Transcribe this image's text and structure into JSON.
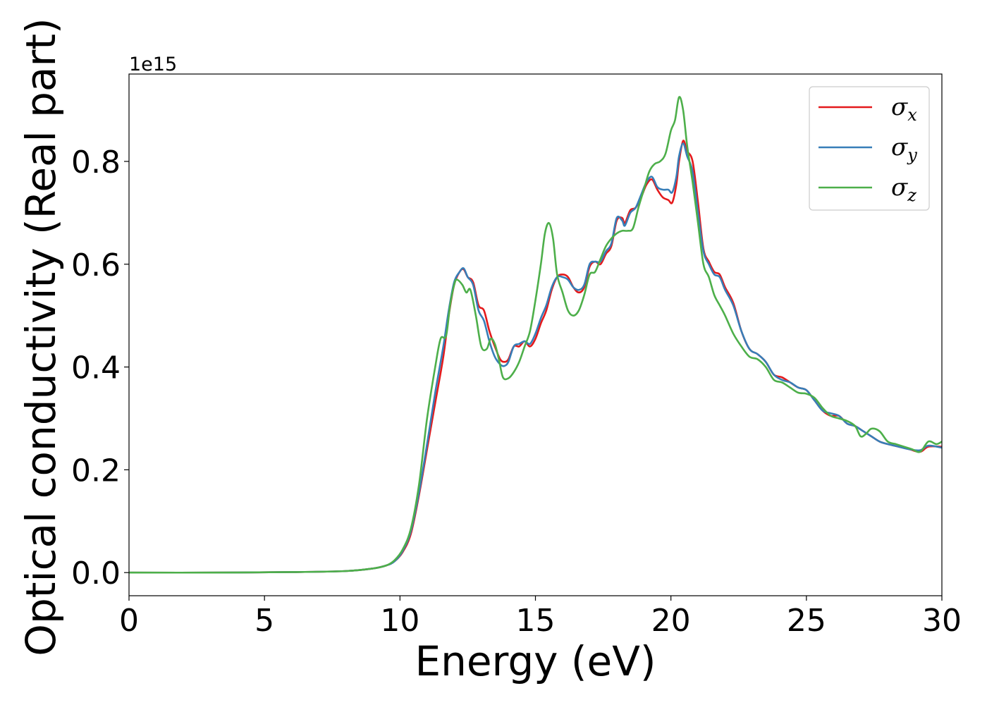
{
  "chart_data": {
    "type": "line",
    "title": "",
    "xlabel": "Energy (eV)",
    "ylabel": "Optical conductivity (Real part)",
    "y_offset_text": "1e15",
    "xlim": [
      0,
      30
    ],
    "ylim": [
      -0.045,
      0.97
    ],
    "x_ticks": [
      0,
      5,
      10,
      15,
      20,
      25,
      30
    ],
    "y_ticks": [
      0.0,
      0.2,
      0.4,
      0.6,
      0.8
    ],
    "x_tick_labels": [
      "0",
      "5",
      "10",
      "15",
      "20",
      "25",
      "30"
    ],
    "y_tick_labels": [
      "0.0",
      "0.2",
      "0.4",
      "0.6",
      "0.8"
    ],
    "grid": false,
    "legend_position": "top-right",
    "series": [
      {
        "name": "σx",
        "legend_base": "σ",
        "legend_sub": "x",
        "color": "#e41a1c",
        "points": [
          [
            0,
            0
          ],
          [
            3,
            0
          ],
          [
            6,
            0.001
          ],
          [
            8,
            0.003
          ],
          [
            9,
            0.008
          ],
          [
            9.5,
            0.014
          ],
          [
            9.8,
            0.022
          ],
          [
            10.1,
            0.04
          ],
          [
            10.4,
            0.075
          ],
          [
            10.7,
            0.15
          ],
          [
            11.0,
            0.24
          ],
          [
            11.3,
            0.33
          ],
          [
            11.6,
            0.42
          ],
          [
            11.8,
            0.5
          ],
          [
            12.0,
            0.56
          ],
          [
            12.2,
            0.585
          ],
          [
            12.35,
            0.59
          ],
          [
            12.5,
            0.575
          ],
          [
            12.7,
            0.565
          ],
          [
            12.9,
            0.52
          ],
          [
            13.1,
            0.51
          ],
          [
            13.3,
            0.47
          ],
          [
            13.5,
            0.44
          ],
          [
            13.7,
            0.415
          ],
          [
            13.85,
            0.41
          ],
          [
            14.0,
            0.415
          ],
          [
            14.2,
            0.44
          ],
          [
            14.4,
            0.44
          ],
          [
            14.6,
            0.45
          ],
          [
            14.8,
            0.44
          ],
          [
            15.0,
            0.455
          ],
          [
            15.2,
            0.485
          ],
          [
            15.4,
            0.51
          ],
          [
            15.6,
            0.55
          ],
          [
            15.8,
            0.575
          ],
          [
            16.0,
            0.58
          ],
          [
            16.2,
            0.575
          ],
          [
            16.4,
            0.555
          ],
          [
            16.6,
            0.545
          ],
          [
            16.8,
            0.555
          ],
          [
            17.0,
            0.595
          ],
          [
            17.2,
            0.605
          ],
          [
            17.4,
            0.6
          ],
          [
            17.6,
            0.62
          ],
          [
            17.8,
            0.635
          ],
          [
            18.0,
            0.685
          ],
          [
            18.2,
            0.69
          ],
          [
            18.3,
            0.68
          ],
          [
            18.5,
            0.705
          ],
          [
            18.7,
            0.71
          ],
          [
            18.9,
            0.73
          ],
          [
            19.1,
            0.755
          ],
          [
            19.3,
            0.765
          ],
          [
            19.5,
            0.745
          ],
          [
            19.7,
            0.73
          ],
          [
            19.9,
            0.725
          ],
          [
            20.05,
            0.72
          ],
          [
            20.2,
            0.755
          ],
          [
            20.3,
            0.8
          ],
          [
            20.45,
            0.84
          ],
          [
            20.6,
            0.82
          ],
          [
            20.8,
            0.8
          ],
          [
            21.0,
            0.72
          ],
          [
            21.2,
            0.63
          ],
          [
            21.4,
            0.605
          ],
          [
            21.6,
            0.585
          ],
          [
            21.8,
            0.58
          ],
          [
            22.0,
            0.555
          ],
          [
            22.3,
            0.525
          ],
          [
            22.6,
            0.47
          ],
          [
            22.9,
            0.435
          ],
          [
            23.2,
            0.425
          ],
          [
            23.5,
            0.41
          ],
          [
            23.8,
            0.385
          ],
          [
            24.1,
            0.38
          ],
          [
            24.4,
            0.37
          ],
          [
            24.7,
            0.36
          ],
          [
            25.0,
            0.355
          ],
          [
            25.3,
            0.335
          ],
          [
            25.6,
            0.315
          ],
          [
            25.9,
            0.305
          ],
          [
            26.2,
            0.305
          ],
          [
            26.5,
            0.29
          ],
          [
            26.8,
            0.285
          ],
          [
            27.1,
            0.275
          ],
          [
            27.4,
            0.265
          ],
          [
            27.7,
            0.255
          ],
          [
            28.0,
            0.25
          ],
          [
            28.4,
            0.245
          ],
          [
            28.8,
            0.24
          ],
          [
            29.2,
            0.235
          ],
          [
            29.5,
            0.245
          ],
          [
            30,
            0.245
          ]
        ]
      },
      {
        "name": "σy",
        "legend_base": "σ",
        "legend_sub": "y",
        "color": "#377eb8",
        "points": [
          [
            0,
            0
          ],
          [
            3,
            0
          ],
          [
            6,
            0.001
          ],
          [
            8,
            0.003
          ],
          [
            9,
            0.008
          ],
          [
            9.5,
            0.014
          ],
          [
            9.8,
            0.022
          ],
          [
            10.1,
            0.042
          ],
          [
            10.4,
            0.08
          ],
          [
            10.7,
            0.155
          ],
          [
            11.0,
            0.25
          ],
          [
            11.3,
            0.35
          ],
          [
            11.6,
            0.44
          ],
          [
            11.8,
            0.51
          ],
          [
            12.0,
            0.565
          ],
          [
            12.2,
            0.585
          ],
          [
            12.35,
            0.592
          ],
          [
            12.5,
            0.575
          ],
          [
            12.7,
            0.56
          ],
          [
            12.9,
            0.51
          ],
          [
            13.1,
            0.49
          ],
          [
            13.3,
            0.45
          ],
          [
            13.5,
            0.42
          ],
          [
            13.7,
            0.405
          ],
          [
            13.85,
            0.402
          ],
          [
            14.0,
            0.41
          ],
          [
            14.2,
            0.44
          ],
          [
            14.4,
            0.445
          ],
          [
            14.6,
            0.45
          ],
          [
            14.8,
            0.445
          ],
          [
            15.0,
            0.465
          ],
          [
            15.2,
            0.495
          ],
          [
            15.4,
            0.52
          ],
          [
            15.6,
            0.555
          ],
          [
            15.8,
            0.575
          ],
          [
            16.0,
            0.575
          ],
          [
            16.2,
            0.57
          ],
          [
            16.4,
            0.555
          ],
          [
            16.6,
            0.55
          ],
          [
            16.8,
            0.56
          ],
          [
            17.0,
            0.6
          ],
          [
            17.2,
            0.605
          ],
          [
            17.4,
            0.605
          ],
          [
            17.6,
            0.625
          ],
          [
            17.8,
            0.64
          ],
          [
            18.0,
            0.69
          ],
          [
            18.2,
            0.685
          ],
          [
            18.3,
            0.675
          ],
          [
            18.5,
            0.7
          ],
          [
            18.7,
            0.71
          ],
          [
            18.9,
            0.735
          ],
          [
            19.1,
            0.76
          ],
          [
            19.3,
            0.77
          ],
          [
            19.5,
            0.75
          ],
          [
            19.7,
            0.745
          ],
          [
            19.9,
            0.745
          ],
          [
            20.05,
            0.74
          ],
          [
            20.2,
            0.77
          ],
          [
            20.3,
            0.81
          ],
          [
            20.45,
            0.835
          ],
          [
            20.6,
            0.81
          ],
          [
            20.8,
            0.78
          ],
          [
            21.0,
            0.7
          ],
          [
            21.2,
            0.625
          ],
          [
            21.4,
            0.6
          ],
          [
            21.6,
            0.58
          ],
          [
            21.8,
            0.575
          ],
          [
            22.0,
            0.55
          ],
          [
            22.3,
            0.52
          ],
          [
            22.6,
            0.47
          ],
          [
            22.9,
            0.435
          ],
          [
            23.2,
            0.425
          ],
          [
            23.5,
            0.41
          ],
          [
            23.8,
            0.385
          ],
          [
            24.1,
            0.375
          ],
          [
            24.4,
            0.37
          ],
          [
            24.7,
            0.36
          ],
          [
            25.0,
            0.355
          ],
          [
            25.3,
            0.335
          ],
          [
            25.6,
            0.315
          ],
          [
            25.9,
            0.31
          ],
          [
            26.2,
            0.305
          ],
          [
            26.5,
            0.29
          ],
          [
            26.8,
            0.285
          ],
          [
            27.1,
            0.275
          ],
          [
            27.4,
            0.265
          ],
          [
            27.7,
            0.255
          ],
          [
            28.0,
            0.25
          ],
          [
            28.4,
            0.245
          ],
          [
            28.8,
            0.24
          ],
          [
            29.2,
            0.238
          ],
          [
            29.5,
            0.247
          ],
          [
            30,
            0.243
          ]
        ]
      },
      {
        "name": "σz",
        "legend_base": "σ",
        "legend_sub": "z",
        "color": "#4daf4a",
        "points": [
          [
            0,
            0
          ],
          [
            3,
            0
          ],
          [
            6,
            0.001
          ],
          [
            8,
            0.003
          ],
          [
            9,
            0.008
          ],
          [
            9.5,
            0.014
          ],
          [
            9.8,
            0.024
          ],
          [
            10.1,
            0.045
          ],
          [
            10.4,
            0.085
          ],
          [
            10.7,
            0.17
          ],
          [
            11.0,
            0.3
          ],
          [
            11.3,
            0.4
          ],
          [
            11.5,
            0.455
          ],
          [
            11.7,
            0.46
          ],
          [
            11.85,
            0.52
          ],
          [
            12.0,
            0.56
          ],
          [
            12.1,
            0.57
          ],
          [
            12.3,
            0.56
          ],
          [
            12.45,
            0.545
          ],
          [
            12.6,
            0.55
          ],
          [
            12.8,
            0.5
          ],
          [
            13.0,
            0.44
          ],
          [
            13.2,
            0.435
          ],
          [
            13.35,
            0.455
          ],
          [
            13.5,
            0.445
          ],
          [
            13.65,
            0.415
          ],
          [
            13.8,
            0.38
          ],
          [
            14.0,
            0.378
          ],
          [
            14.2,
            0.39
          ],
          [
            14.4,
            0.41
          ],
          [
            14.6,
            0.44
          ],
          [
            14.8,
            0.47
          ],
          [
            15.0,
            0.53
          ],
          [
            15.2,
            0.6
          ],
          [
            15.35,
            0.66
          ],
          [
            15.5,
            0.68
          ],
          [
            15.65,
            0.65
          ],
          [
            15.8,
            0.58
          ],
          [
            16.0,
            0.545
          ],
          [
            16.2,
            0.51
          ],
          [
            16.4,
            0.5
          ],
          [
            16.6,
            0.51
          ],
          [
            16.8,
            0.54
          ],
          [
            17.0,
            0.58
          ],
          [
            17.2,
            0.585
          ],
          [
            17.4,
            0.61
          ],
          [
            17.6,
            0.635
          ],
          [
            17.8,
            0.65
          ],
          [
            18.0,
            0.66
          ],
          [
            18.2,
            0.665
          ],
          [
            18.4,
            0.665
          ],
          [
            18.6,
            0.67
          ],
          [
            18.8,
            0.71
          ],
          [
            19.0,
            0.745
          ],
          [
            19.2,
            0.78
          ],
          [
            19.4,
            0.795
          ],
          [
            19.6,
            0.8
          ],
          [
            19.8,
            0.815
          ],
          [
            20.0,
            0.86
          ],
          [
            20.15,
            0.88
          ],
          [
            20.3,
            0.925
          ],
          [
            20.45,
            0.9
          ],
          [
            20.6,
            0.83
          ],
          [
            20.8,
            0.76
          ],
          [
            21.0,
            0.68
          ],
          [
            21.2,
            0.6
          ],
          [
            21.4,
            0.575
          ],
          [
            21.6,
            0.54
          ],
          [
            21.8,
            0.52
          ],
          [
            22.0,
            0.5
          ],
          [
            22.3,
            0.465
          ],
          [
            22.6,
            0.44
          ],
          [
            22.9,
            0.42
          ],
          [
            23.2,
            0.415
          ],
          [
            23.5,
            0.4
          ],
          [
            23.8,
            0.375
          ],
          [
            24.1,
            0.37
          ],
          [
            24.4,
            0.36
          ],
          [
            24.7,
            0.35
          ],
          [
            25.0,
            0.348
          ],
          [
            25.3,
            0.34
          ],
          [
            25.6,
            0.32
          ],
          [
            25.9,
            0.305
          ],
          [
            26.2,
            0.3
          ],
          [
            26.5,
            0.295
          ],
          [
            26.8,
            0.285
          ],
          [
            27.0,
            0.265
          ],
          [
            27.2,
            0.27
          ],
          [
            27.4,
            0.28
          ],
          [
            27.7,
            0.275
          ],
          [
            28.0,
            0.255
          ],
          [
            28.3,
            0.25
          ],
          [
            28.6,
            0.245
          ],
          [
            28.9,
            0.24
          ],
          [
            29.2,
            0.235
          ],
          [
            29.5,
            0.255
          ],
          [
            29.8,
            0.25
          ],
          [
            30,
            0.255
          ]
        ]
      }
    ]
  }
}
